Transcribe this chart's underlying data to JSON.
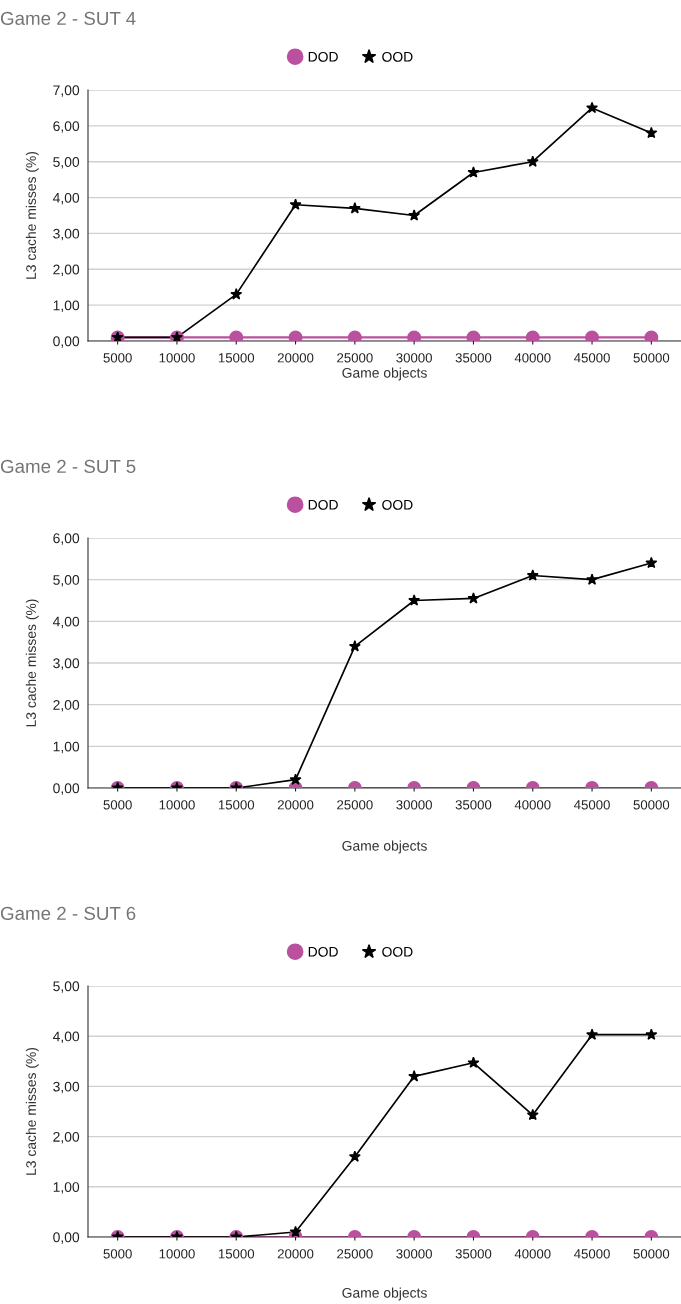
{
  "chart_data": [
    {
      "type": "line",
      "title": "Game 2 - SUT 4",
      "xlabel": "Game objects",
      "ylabel": "L3 cache misses (%)",
      "categories": [
        "5000",
        "10000",
        "15000",
        "20000",
        "25000",
        "30000",
        "35000",
        "40000",
        "45000",
        "50000"
      ],
      "series": [
        {
          "name": "DOD",
          "color": "#b9519f",
          "marker": "circle",
          "values": [
            0.1,
            0.1,
            0.1,
            0.1,
            0.1,
            0.1,
            0.1,
            0.1,
            0.1,
            0.1
          ]
        },
        {
          "name": "OOD",
          "color": "#000000",
          "marker": "star",
          "values": [
            0.1,
            0.1,
            1.3,
            3.8,
            3.7,
            3.5,
            4.7,
            5.0,
            6.5,
            5.8
          ]
        }
      ],
      "ylim": [
        0,
        7
      ],
      "yticks": [
        {
          "value": 0,
          "label": "0,00"
        },
        {
          "value": 1,
          "label": "1,00"
        },
        {
          "value": 2,
          "label": "2,00"
        },
        {
          "value": 3,
          "label": "3,00"
        },
        {
          "value": 4,
          "label": "4,00"
        },
        {
          "value": 5,
          "label": "5,00"
        },
        {
          "value": 6,
          "label": "6,00"
        },
        {
          "value": 7,
          "label": "7,00"
        }
      ],
      "grid": "y",
      "legend": "top",
      "line_style": "solid"
    },
    {
      "type": "line",
      "title": "Game 2 - SUT 5",
      "xlabel": "Game objects",
      "ylabel": "L3 cache misses (%)",
      "categories": [
        "5000",
        "10000",
        "15000",
        "20000",
        "25000",
        "30000",
        "35000",
        "40000",
        "45000",
        "50000"
      ],
      "series": [
        {
          "name": "DOD",
          "color": "#b9519f",
          "marker": "circle",
          "values": [
            0,
            0,
            0,
            0,
            0,
            0,
            0,
            0,
            0,
            0
          ]
        },
        {
          "name": "OOD",
          "color": "#000000",
          "marker": "star",
          "values": [
            0,
            0,
            0,
            0.2,
            3.4,
            4.5,
            4.55,
            5.1,
            5.0,
            5.4
          ]
        }
      ],
      "ylim": [
        0,
        6
      ],
      "yticks": [
        {
          "value": 0,
          "label": "0,00"
        },
        {
          "value": 1,
          "label": "1,00"
        },
        {
          "value": 2,
          "label": "2,00"
        },
        {
          "value": 3,
          "label": "3,00"
        },
        {
          "value": 4,
          "label": "4,00"
        },
        {
          "value": 5,
          "label": "5,00"
        },
        {
          "value": 6,
          "label": "6,00"
        }
      ],
      "grid": "y",
      "legend": "top",
      "line_style": "solid"
    },
    {
      "type": "line",
      "title": "Game 2 - SUT 6",
      "xlabel": "Game objects",
      "ylabel": "L3 cache misses (%)",
      "categories": [
        "5000",
        "10000",
        "15000",
        "20000",
        "25000",
        "30000",
        "35000",
        "40000",
        "45000",
        "50000"
      ],
      "series": [
        {
          "name": "DOD",
          "color": "#b9519f",
          "marker": "circle",
          "values": [
            0,
            0,
            0,
            0,
            0,
            0,
            0,
            0,
            0,
            0
          ]
        },
        {
          "name": "OOD",
          "color": "#000000",
          "marker": "star",
          "values": [
            0,
            0,
            0,
            0.1,
            1.6,
            3.2,
            3.47,
            2.43,
            4.03,
            4.03
          ]
        }
      ],
      "ylim": [
        0,
        5
      ],
      "yticks": [
        {
          "value": 0,
          "label": "0,00"
        },
        {
          "value": 1,
          "label": "1,00"
        },
        {
          "value": 2,
          "label": "2,00"
        },
        {
          "value": 3,
          "label": "3,00"
        },
        {
          "value": 4,
          "label": "4,00"
        },
        {
          "value": 5,
          "label": "5,00"
        }
      ],
      "grid": "y",
      "legend": "top",
      "line_style": "solid"
    }
  ]
}
